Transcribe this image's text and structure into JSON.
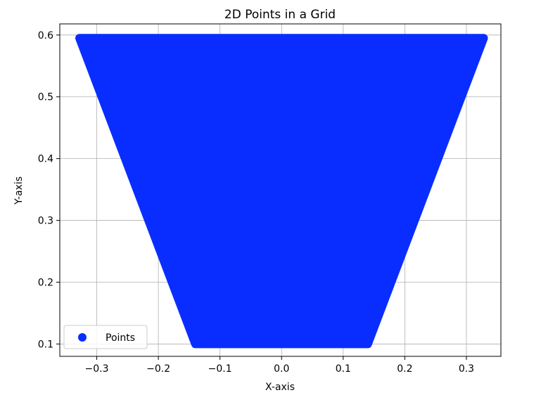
{
  "chart_data": {
    "type": "scatter",
    "title": "2D Points in a Grid",
    "xlabel": "X-axis",
    "ylabel": "Y-axis",
    "xlim": [
      -0.36,
      0.356
    ],
    "ylim": [
      0.08,
      0.618
    ],
    "xticks": [
      -0.3,
      -0.2,
      -0.1,
      0.0,
      0.1,
      0.2,
      0.3
    ],
    "xtick_labels": [
      "−0.3",
      "−0.2",
      "−0.1",
      "0.0",
      "0.1",
      "0.2",
      "0.3"
    ],
    "yticks": [
      0.1,
      0.2,
      0.3,
      0.4,
      0.5,
      0.6
    ],
    "ytick_labels": [
      "0.1",
      "0.2",
      "0.3",
      "0.4",
      "0.5",
      "0.6"
    ],
    "grid": true,
    "legend_position": "lower-left",
    "series": [
      {
        "name": "Points",
        "color": "#0a2dff",
        "shape": "trapezoid-filled",
        "vertices": [
          [
            -0.328,
            0.595
          ],
          [
            0.328,
            0.595
          ],
          [
            0.14,
            0.1
          ],
          [
            -0.14,
            0.1
          ]
        ]
      }
    ]
  }
}
